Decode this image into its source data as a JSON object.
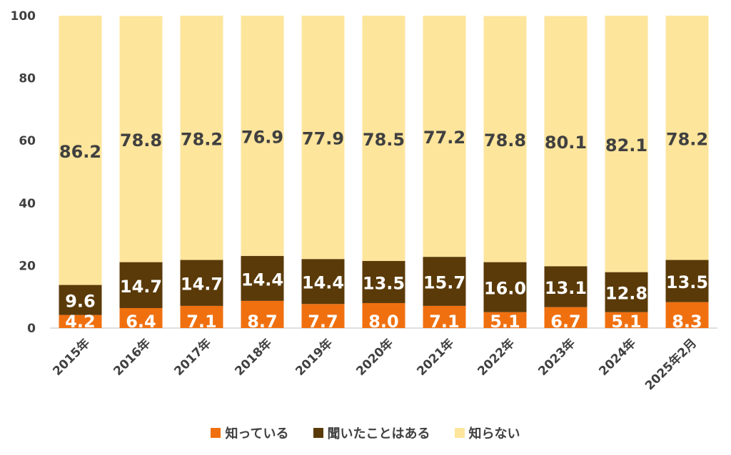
{
  "chart_data": {
    "type": "bar",
    "stacked": true,
    "categories": [
      "2015年",
      "2016年",
      "2017年",
      "2018年",
      "2019年",
      "2020年",
      "2021年",
      "2022年",
      "2023年",
      "2024年",
      "2025年2月"
    ],
    "series": [
      {
        "name": "知っている",
        "color": "#f07010",
        "label_color": "#ffffff",
        "values": [
          4.2,
          6.4,
          7.1,
          8.7,
          7.7,
          8.0,
          7.1,
          5.1,
          6.7,
          5.1,
          8.3
        ]
      },
      {
        "name": "聞いたことはある",
        "color": "#5a3a08",
        "label_color": "#ffffff",
        "values": [
          9.6,
          14.7,
          14.7,
          14.4,
          14.4,
          13.5,
          15.7,
          16.0,
          13.1,
          12.8,
          13.5
        ]
      },
      {
        "name": "知らない",
        "color": "#fde59c",
        "label_color": "#404040",
        "values": [
          86.2,
          78.8,
          78.2,
          76.9,
          77.9,
          78.5,
          77.2,
          78.8,
          80.1,
          82.1,
          78.2
        ]
      }
    ],
    "ylim": [
      0,
      100
    ],
    "yticks": [
      "0",
      "20",
      "40",
      "60",
      "80",
      "100"
    ],
    "legend_position": "bottom",
    "grid": false
  }
}
